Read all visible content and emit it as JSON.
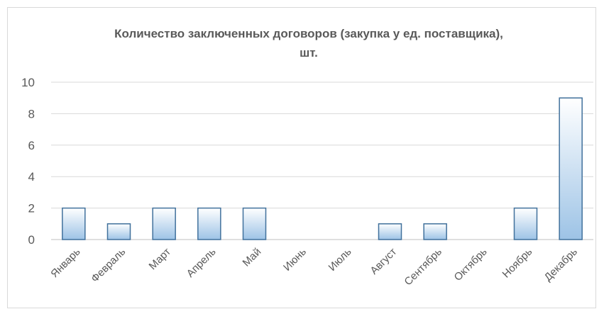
{
  "chart_data": {
    "type": "bar",
    "title": "Количество заключенных договоров (закупка у ед. поставщика),",
    "title_line2": "шт.",
    "xlabel": "",
    "ylabel": "",
    "categories": [
      "Январь",
      "Февраль",
      "Март",
      "Апрель",
      "Май",
      "Июнь",
      "Июль",
      "Август",
      "Сентябрь",
      "Октябрь",
      "Ноябрь",
      "Декабрь"
    ],
    "values": [
      2,
      1,
      2,
      2,
      2,
      0,
      0,
      1,
      1,
      0,
      2,
      9
    ],
    "ylim": [
      0,
      10
    ],
    "yticks": [
      0,
      2,
      4,
      6,
      8,
      10
    ],
    "grid": true,
    "legend": "none",
    "colors": {
      "bar_fill_top": "#ffffff",
      "bar_fill_bottom": "#9dc3e6",
      "bar_stroke": "#41719c",
      "grid": "#d9d9d9",
      "text": "#595959"
    }
  }
}
